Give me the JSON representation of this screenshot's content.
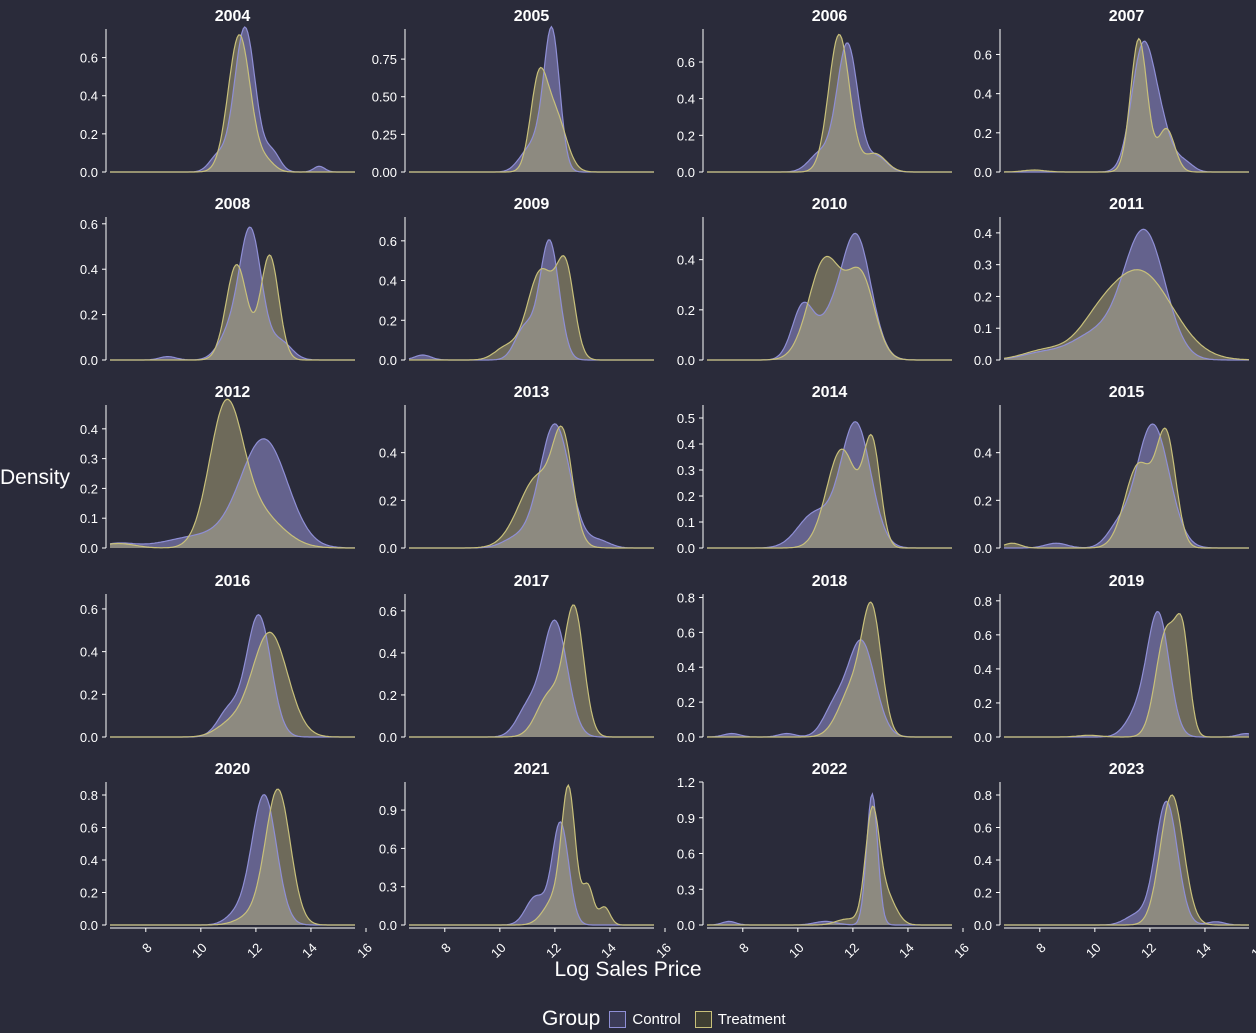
{
  "chart_data": {
    "type": "area",
    "facet_titles": [
      "2004",
      "2005",
      "2006",
      "2007",
      "2008",
      "2009",
      "2010",
      "2011",
      "2012",
      "2013",
      "2014",
      "2015",
      "2016",
      "2017",
      "2018",
      "2019",
      "2020",
      "2021",
      "2022",
      "2023"
    ],
    "xlabel": "Log Sales Price",
    "ylabel": "Density",
    "xlim": [
      6.7,
      15.6
    ],
    "x_ticks": [
      8,
      10,
      12,
      14,
      16
    ],
    "legend": {
      "title": "Group",
      "position": "bottom",
      "entries": [
        "Control",
        "Treatment"
      ]
    },
    "colors": {
      "background": "#2a2b3a",
      "control_fill": "#6e6c9c",
      "control_line": "#8f8fd6",
      "treatment_fill": "#7a7660",
      "treatment_line": "#c8c07a",
      "overlap_fill": "#8d8a80"
    },
    "panels": [
      {
        "year": "2004",
        "ymax": 0.75,
        "yticks": [
          0,
          0.2,
          0.4,
          0.6
        ],
        "control": [
          [
            11.6,
            0.76,
            0.38
          ],
          [
            10.6,
            0.08,
            0.3
          ],
          [
            12.6,
            0.1,
            0.28
          ],
          [
            14.3,
            0.03,
            0.2
          ]
        ],
        "treatment": [
          [
            11.4,
            0.72,
            0.4
          ],
          [
            12.4,
            0.05,
            0.3
          ]
        ]
      },
      {
        "year": "2005",
        "ymax": 0.95,
        "yticks": [
          0,
          0.25,
          0.5,
          0.75
        ],
        "control": [
          [
            11.9,
            0.87,
            0.28
          ],
          [
            11.4,
            0.2,
            0.4
          ],
          [
            10.8,
            0.05,
            0.3
          ]
        ],
        "treatment": [
          [
            11.4,
            0.55,
            0.3
          ],
          [
            12.0,
            0.38,
            0.4
          ]
        ]
      },
      {
        "year": "2006",
        "ymax": 0.78,
        "yticks": [
          0,
          0.2,
          0.4,
          0.6
        ],
        "control": [
          [
            11.8,
            0.7,
            0.38
          ],
          [
            10.8,
            0.1,
            0.4
          ],
          [
            12.9,
            0.08,
            0.35
          ]
        ],
        "treatment": [
          [
            11.5,
            0.75,
            0.38
          ],
          [
            12.8,
            0.1,
            0.4
          ]
        ]
      },
      {
        "year": "2007",
        "ymax": 0.73,
        "yticks": [
          0,
          0.2,
          0.4,
          0.6
        ],
        "control": [
          [
            11.7,
            0.55,
            0.4
          ],
          [
            12.3,
            0.25,
            0.45
          ],
          [
            13.3,
            0.04,
            0.3
          ]
        ],
        "treatment": [
          [
            11.6,
            0.68,
            0.3
          ],
          [
            12.6,
            0.22,
            0.3
          ],
          [
            7.8,
            0.01,
            0.4
          ]
        ]
      },
      {
        "year": "2008",
        "ymax": 0.63,
        "yticks": [
          0,
          0.2,
          0.4,
          0.6
        ],
        "control": [
          [
            11.8,
            0.57,
            0.4
          ],
          [
            11.0,
            0.1,
            0.4
          ],
          [
            12.9,
            0.08,
            0.4
          ],
          [
            8.8,
            0.015,
            0.3
          ]
        ],
        "treatment": [
          [
            11.3,
            0.42,
            0.38
          ],
          [
            12.5,
            0.46,
            0.33
          ]
        ]
      },
      {
        "year": "2009",
        "ymax": 0.72,
        "yticks": [
          0,
          0.2,
          0.4,
          0.6
        ],
        "control": [
          [
            11.8,
            0.6,
            0.35
          ],
          [
            10.9,
            0.16,
            0.35
          ],
          [
            7.2,
            0.025,
            0.3
          ]
        ],
        "treatment": [
          [
            11.5,
            0.45,
            0.5
          ],
          [
            12.4,
            0.42,
            0.32
          ],
          [
            10.2,
            0.06,
            0.4
          ]
        ]
      },
      {
        "year": "2010",
        "ymax": 0.57,
        "yticks": [
          0,
          0.2,
          0.4
        ],
        "control": [
          [
            12.1,
            0.5,
            0.55
          ],
          [
            10.2,
            0.22,
            0.4
          ],
          [
            11.1,
            0.1,
            0.4
          ]
        ],
        "treatment": [
          [
            11.0,
            0.4,
            0.6
          ],
          [
            12.3,
            0.32,
            0.5
          ]
        ]
      },
      {
        "year": "2011",
        "ymax": 0.45,
        "yticks": [
          0,
          0.1,
          0.2,
          0.3,
          0.4
        ],
        "control": [
          [
            11.8,
            0.4,
            0.75
          ],
          [
            10.0,
            0.08,
            0.9
          ],
          [
            8.0,
            0.02,
            0.7
          ]
        ],
        "treatment": [
          [
            11.6,
            0.28,
            1.2
          ],
          [
            8.2,
            0.03,
            0.8
          ],
          [
            10.0,
            0.05,
            0.7
          ]
        ]
      },
      {
        "year": "2012",
        "ymax": 0.48,
        "yticks": [
          0,
          0.1,
          0.2,
          0.3,
          0.4
        ],
        "control": [
          [
            12.3,
            0.36,
            0.85
          ],
          [
            10.0,
            0.04,
            1.2
          ],
          [
            7.0,
            0.015,
            0.6
          ]
        ],
        "treatment": [
          [
            10.9,
            0.44,
            0.6
          ],
          [
            12.0,
            0.12,
            0.9
          ],
          [
            7.0,
            0.015,
            0.6
          ]
        ]
      },
      {
        "year": "2013",
        "ymax": 0.6,
        "yticks": [
          0,
          0.2,
          0.4
        ],
        "control": [
          [
            12.0,
            0.52,
            0.55
          ],
          [
            10.6,
            0.04,
            0.5
          ],
          [
            13.6,
            0.03,
            0.4
          ]
        ],
        "treatment": [
          [
            11.4,
            0.3,
            0.7
          ],
          [
            12.3,
            0.37,
            0.35
          ]
        ]
      },
      {
        "year": "2014",
        "ymax": 0.55,
        "yticks": [
          0,
          0.1,
          0.2,
          0.3,
          0.4,
          0.5
        ],
        "control": [
          [
            12.1,
            0.48,
            0.55
          ],
          [
            10.6,
            0.13,
            0.6
          ]
        ],
        "treatment": [
          [
            11.6,
            0.38,
            0.55
          ],
          [
            12.7,
            0.38,
            0.3
          ]
        ]
      },
      {
        "year": "2015",
        "ymax": 0.6,
        "yticks": [
          0,
          0.2,
          0.4
        ],
        "control": [
          [
            12.1,
            0.52,
            0.6
          ],
          [
            10.8,
            0.07,
            0.4
          ],
          [
            8.6,
            0.02,
            0.4
          ]
        ],
        "treatment": [
          [
            11.6,
            0.35,
            0.5
          ],
          [
            12.6,
            0.45,
            0.35
          ],
          [
            7.0,
            0.02,
            0.3
          ]
        ]
      },
      {
        "year": "2016",
        "ymax": 0.67,
        "yticks": [
          0,
          0.2,
          0.4,
          0.6
        ],
        "control": [
          [
            12.1,
            0.57,
            0.45
          ],
          [
            11.0,
            0.12,
            0.4
          ]
        ],
        "treatment": [
          [
            12.5,
            0.49,
            0.65
          ],
          [
            11.0,
            0.05,
            0.5
          ]
        ]
      },
      {
        "year": "2017",
        "ymax": 0.68,
        "yticks": [
          0,
          0.2,
          0.4,
          0.6
        ],
        "control": [
          [
            12.0,
            0.55,
            0.45
          ],
          [
            11.0,
            0.13,
            0.4
          ]
        ],
        "treatment": [
          [
            12.7,
            0.6,
            0.35
          ],
          [
            11.8,
            0.2,
            0.45
          ]
        ]
      },
      {
        "year": "2018",
        "ymax": 0.82,
        "yticks": [
          0,
          0.2,
          0.4,
          0.6,
          0.8
        ],
        "control": [
          [
            12.3,
            0.55,
            0.5
          ],
          [
            11.3,
            0.15,
            0.4
          ],
          [
            7.6,
            0.02,
            0.3
          ],
          [
            9.6,
            0.02,
            0.3
          ]
        ],
        "treatment": [
          [
            12.7,
            0.66,
            0.35
          ],
          [
            12.0,
            0.28,
            0.5
          ]
        ]
      },
      {
        "year": "2019",
        "ymax": 0.84,
        "yticks": [
          0,
          0.2,
          0.4,
          0.6,
          0.8
        ],
        "control": [
          [
            12.3,
            0.72,
            0.4
          ],
          [
            11.5,
            0.12,
            0.4
          ],
          [
            15.5,
            0.02,
            0.3
          ]
        ],
        "treatment": [
          [
            12.6,
            0.62,
            0.38
          ],
          [
            13.2,
            0.5,
            0.25
          ],
          [
            9.8,
            0.01,
            0.4
          ]
        ]
      },
      {
        "year": "2020",
        "ymax": 0.88,
        "yticks": [
          0,
          0.2,
          0.4,
          0.6,
          0.8
        ],
        "control": [
          [
            12.3,
            0.8,
            0.45
          ],
          [
            11.3,
            0.06,
            0.4
          ]
        ],
        "treatment": [
          [
            12.8,
            0.83,
            0.45
          ],
          [
            11.8,
            0.05,
            0.5
          ]
        ]
      },
      {
        "year": "2021",
        "ymax": 1.12,
        "yticks": [
          0,
          0.3,
          0.6,
          0.9
        ],
        "control": [
          [
            12.2,
            0.8,
            0.3
          ],
          [
            11.3,
            0.22,
            0.35
          ]
        ],
        "treatment": [
          [
            12.5,
            1.0,
            0.25
          ],
          [
            13.2,
            0.3,
            0.2
          ],
          [
            13.8,
            0.14,
            0.2
          ],
          [
            12.0,
            0.2,
            0.4
          ]
        ]
      },
      {
        "year": "2022",
        "ymax": 1.2,
        "yticks": [
          0,
          0.3,
          0.6,
          0.9,
          1.2
        ],
        "control": [
          [
            12.7,
            1.1,
            0.2
          ],
          [
            7.5,
            0.03,
            0.25
          ],
          [
            11.0,
            0.03,
            0.4
          ]
        ],
        "treatment": [
          [
            12.7,
            0.9,
            0.25
          ],
          [
            13.2,
            0.25,
            0.35
          ],
          [
            11.8,
            0.05,
            0.4
          ]
        ]
      },
      {
        "year": "2023",
        "ymax": 0.88,
        "yticks": [
          0,
          0.2,
          0.4,
          0.6,
          0.8
        ],
        "control": [
          [
            12.6,
            0.76,
            0.4
          ],
          [
            11.5,
            0.06,
            0.4
          ],
          [
            14.4,
            0.02,
            0.3
          ]
        ],
        "treatment": [
          [
            12.8,
            0.8,
            0.42
          ]
        ]
      }
    ]
  }
}
